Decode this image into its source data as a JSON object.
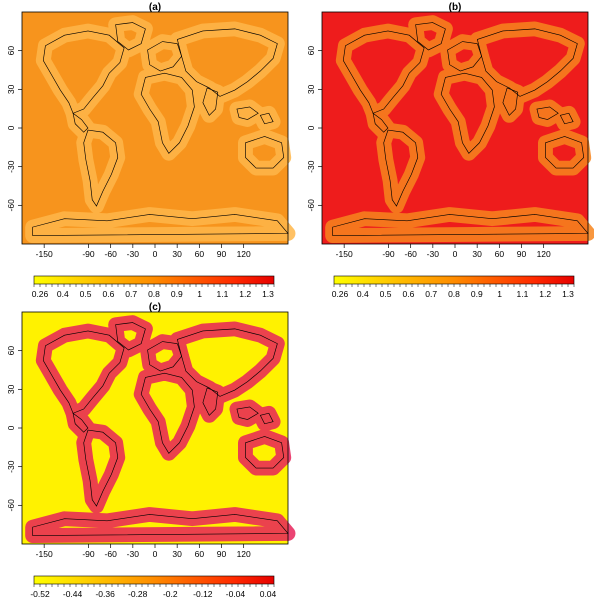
{
  "panels": [
    {
      "id": "a",
      "label": "(a)",
      "map_style": "orange",
      "colorbar_ticks": [
        "0.26",
        "0.4",
        "0.5",
        "0.6",
        "0.7",
        "0.8",
        "0.9",
        "1",
        "1.1",
        "1.2",
        "1.3"
      ],
      "colorbar_colors": [
        "#ffff00",
        "#ffd700",
        "#ffb000",
        "#ff8c00",
        "#ff5a00",
        "#ff2a00",
        "#e60000"
      ]
    },
    {
      "id": "b",
      "label": "(b)",
      "map_style": "red",
      "colorbar_ticks": [
        "0.26",
        "0.4",
        "0.5",
        "0.6",
        "0.7",
        "0.8",
        "0.9",
        "1",
        "1.1",
        "1.2",
        "1.3"
      ],
      "colorbar_colors": [
        "#ffff00",
        "#ffd700",
        "#ffb000",
        "#ff8c00",
        "#ff5a00",
        "#ff2a00",
        "#e60000"
      ]
    },
    {
      "id": "c",
      "label": "(c)",
      "map_style": "yellow",
      "colorbar_ticks": [
        "-0.52",
        "-0.44",
        "-0.36",
        "-0.28",
        "-0.2",
        "-0.12",
        "-0.04",
        "0.04"
      ],
      "colorbar_colors": [
        "#ffff00",
        "#ffdc00",
        "#ffb400",
        "#ff8c00",
        "#ff5a00",
        "#ff2a00",
        "#e60000"
      ]
    }
  ],
  "axes": {
    "x_ticks": [
      "-150",
      "-90",
      "-60",
      "-30",
      "0",
      "30",
      "60",
      "90",
      "120"
    ],
    "y_ticks": [
      "60",
      "30",
      "0",
      "-30",
      "-60"
    ]
  },
  "colors": {
    "orange_bg": "#f7941d",
    "orange_hot": "#ffb74a",
    "red_bg": "#ee1c1c",
    "red_hot": "#f7851e",
    "yellow_bg": "#fff200",
    "yellow_hot": "#e8235a",
    "coast": "#000000"
  }
}
